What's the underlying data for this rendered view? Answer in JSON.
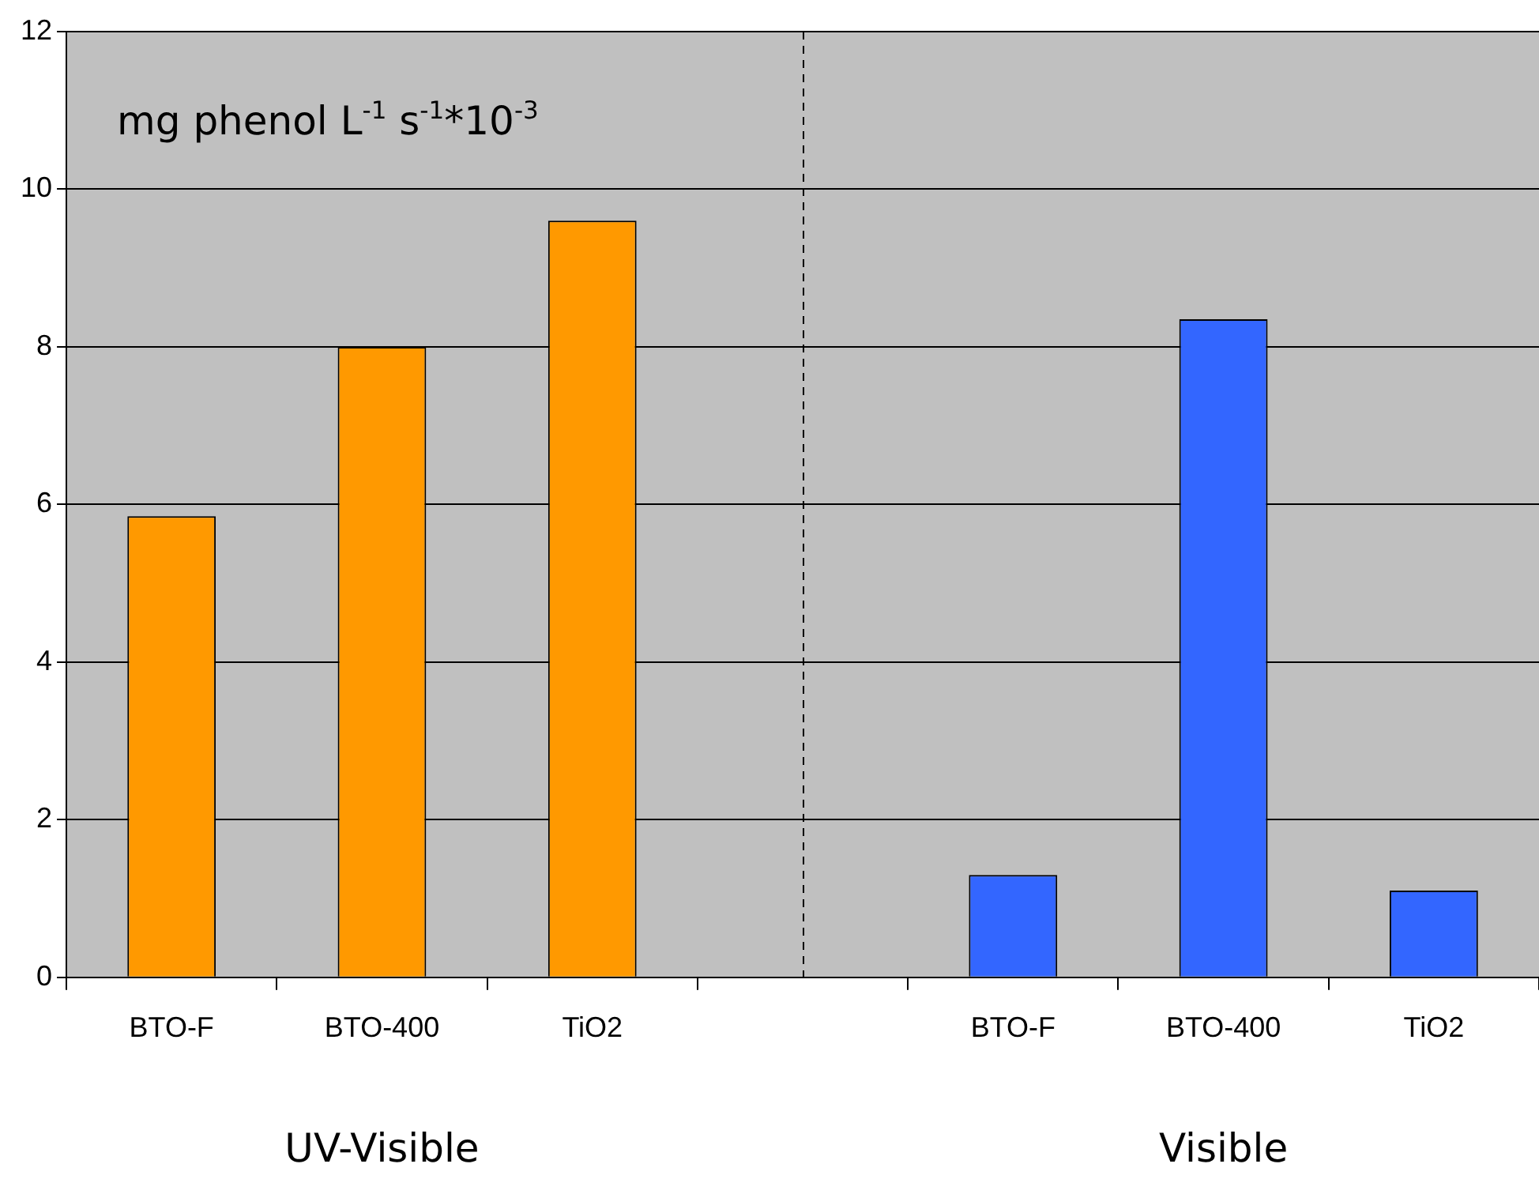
{
  "chart_data": {
    "type": "bar",
    "ylabel": "mg phenol L$^{-1}$ s$^{-1}$*10$^{-3}$",
    "categories": [
      "BTO-F",
      "BTO-400",
      "TiO2",
      null,
      "BTO-F",
      "BTO-400",
      "TiO2"
    ],
    "values": [
      5.85,
      8.0,
      9.6,
      null,
      1.3,
      8.35,
      1.1
    ],
    "colors": [
      "#ff9900",
      "#ff9900",
      "#ff9900",
      "#ff9900",
      "#3366ff",
      "#3366ff",
      "#3366ff"
    ],
    "ylim": [
      0,
      12
    ],
    "yticks": [
      0,
      2,
      4,
      6,
      8,
      10,
      12
    ],
    "grid": "y",
    "legend": false,
    "annotations": [
      "UV-Visible",
      "Visible"
    ]
  }
}
